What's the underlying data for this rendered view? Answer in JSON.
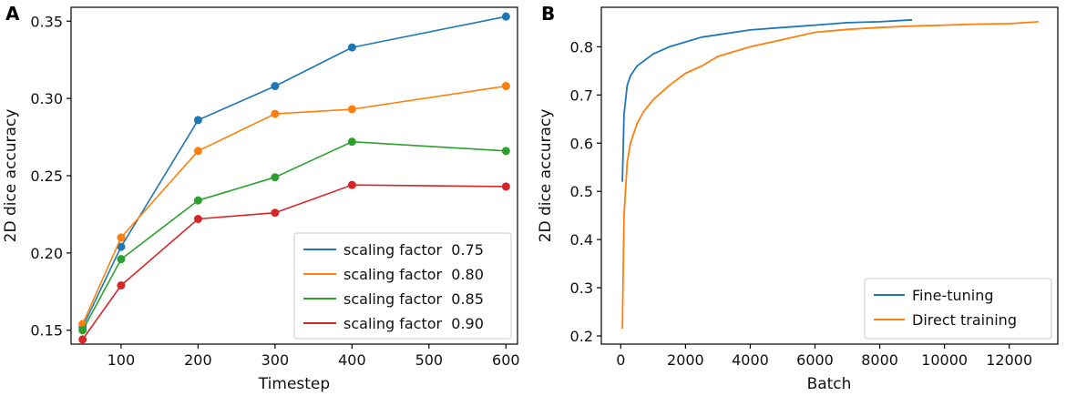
{
  "chart_data": [
    {
      "panel": "A",
      "type": "line",
      "title": "",
      "xlabel": "Timestep",
      "ylabel": "2D dice accuracy",
      "xlim": [
        35,
        615
      ],
      "ylim": [
        0.141,
        0.359
      ],
      "xticks": [
        100,
        200,
        300,
        400,
        500,
        600
      ],
      "xtick_labels": [
        "100",
        "200",
        "300",
        "400",
        "500",
        "600"
      ],
      "yticks": [
        0.15,
        0.2,
        0.25,
        0.3,
        0.35
      ],
      "ytick_labels": [
        "0.15",
        "0.20",
        "0.25",
        "0.30",
        "0.35"
      ],
      "legend_position": "bottom-right",
      "x": [
        50,
        100,
        200,
        300,
        400,
        600
      ],
      "series": [
        {
          "name": "scaling factor  0.75",
          "color": "#1f77b4",
          "values": [
            0.152,
            0.204,
            0.286,
            0.308,
            0.333,
            0.353
          ]
        },
        {
          "name": "scaling factor  0.80",
          "color": "#ff7f0e",
          "values": [
            0.154,
            0.21,
            0.266,
            0.29,
            0.293,
            0.308
          ]
        },
        {
          "name": "scaling factor  0.85",
          "color": "#2ca02c",
          "values": [
            0.15,
            0.196,
            0.234,
            0.249,
            0.272,
            0.266
          ]
        },
        {
          "name": "scaling factor  0.90",
          "color": "#d62728",
          "values": [
            0.144,
            0.179,
            0.222,
            0.226,
            0.244,
            0.243
          ]
        }
      ]
    },
    {
      "panel": "B",
      "type": "line",
      "title": "",
      "xlabel": "Batch",
      "ylabel": "2D dice accuracy",
      "xlim": [
        -600,
        13500
      ],
      "ylim": [
        0.183,
        0.882
      ],
      "xticks": [
        0,
        2000,
        4000,
        6000,
        8000,
        10000,
        12000
      ],
      "xtick_labels": [
        "0",
        "2000",
        "4000",
        "6000",
        "8000",
        "10000",
        "12000"
      ],
      "yticks": [
        0.2,
        0.3,
        0.4,
        0.5,
        0.6,
        0.7,
        0.8
      ],
      "ytick_labels": [
        "0.2",
        "0.3",
        "0.4",
        "0.5",
        "0.6",
        "0.7",
        "0.8"
      ],
      "legend_position": "bottom-right",
      "series": [
        {
          "name": "Fine-tuning",
          "color": "#1f77b4",
          "x": [
            50,
            100,
            200,
            300,
            500,
            700,
            1000,
            1500,
            2000,
            2500,
            3000,
            4000,
            5000,
            6000,
            7000,
            8000,
            9000
          ],
          "values": [
            0.52,
            0.66,
            0.72,
            0.74,
            0.76,
            0.77,
            0.785,
            0.8,
            0.81,
            0.82,
            0.825,
            0.835,
            0.84,
            0.845,
            0.85,
            0.852,
            0.856
          ]
        },
        {
          "name": "Direct training",
          "color": "#ff7f0e",
          "x": [
            50,
            100,
            200,
            300,
            500,
            700,
            1000,
            1500,
            2000,
            2500,
            3000,
            4000,
            5000,
            6000,
            7000,
            8000,
            9000,
            10000,
            11000,
            12000,
            12900
          ],
          "values": [
            0.215,
            0.45,
            0.56,
            0.6,
            0.64,
            0.665,
            0.69,
            0.72,
            0.745,
            0.76,
            0.78,
            0.8,
            0.815,
            0.83,
            0.836,
            0.84,
            0.843,
            0.845,
            0.847,
            0.848,
            0.852
          ]
        }
      ]
    }
  ]
}
